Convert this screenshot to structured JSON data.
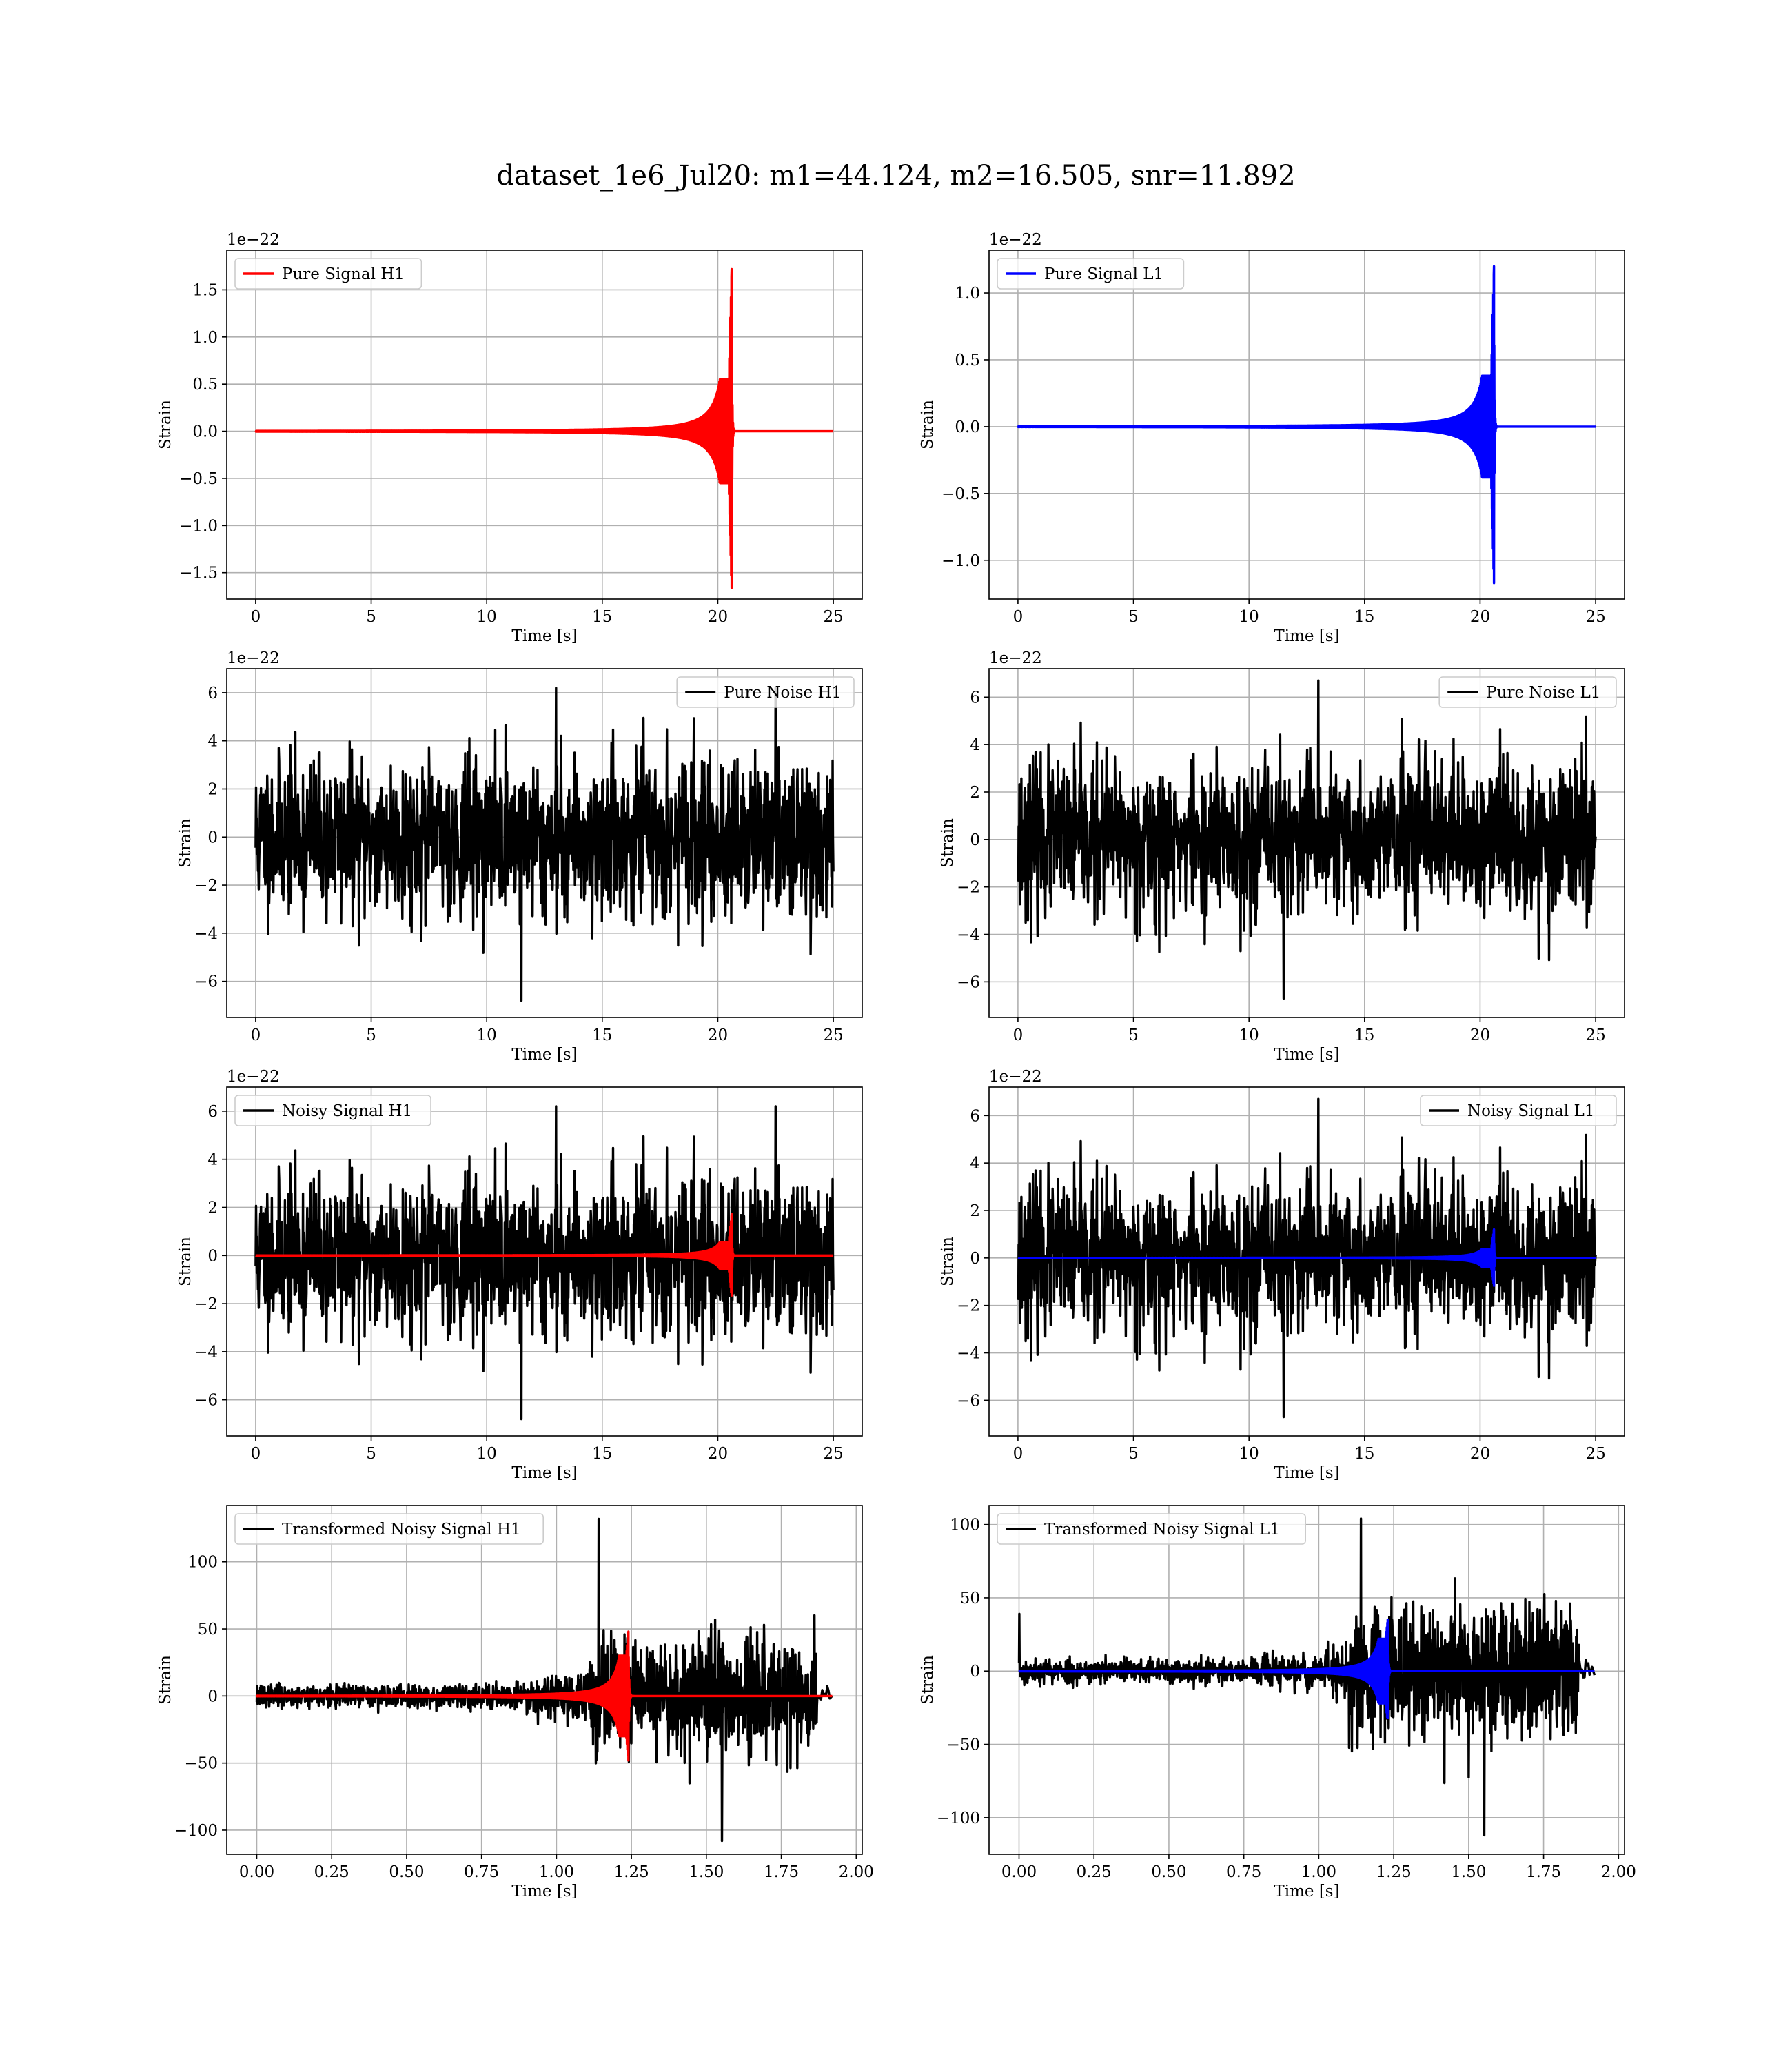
{
  "figure": {
    "title": "dataset_1e6_Jul20: m1=44.124, m2=16.505, snr=11.892"
  },
  "colors": {
    "h1_signal": "#ff0000",
    "l1_signal": "#0000ff",
    "noise": "#000000",
    "grid": "#b0b0b0"
  },
  "chart_data": [
    {
      "id": "pure-signal-h1",
      "type": "line",
      "row": 0,
      "col": 0,
      "xlabel": "Time [s]",
      "ylabel": "Strain",
      "offset_text": "1e−22",
      "xlim": [
        -1.25,
        26.25
      ],
      "ylim": [
        -1.78,
        1.92
      ],
      "xticks": [
        0,
        5,
        10,
        15,
        20,
        25
      ],
      "xtick_labels": [
        "0",
        "5",
        "10",
        "15",
        "20",
        "25"
      ],
      "yticks": [
        -1.5,
        -1.0,
        -0.5,
        0.0,
        0.5,
        1.0,
        1.5
      ],
      "ytick_labels": [
        "−1.5",
        "−1.0",
        "−0.5",
        "0.0",
        "0.5",
        "1.0",
        "1.5"
      ],
      "legend": {
        "position": "upper left",
        "label": "Pure Signal H1"
      },
      "series": [
        {
          "kind": "chirp",
          "color": "#ff0000",
          "legend": true,
          "x_range": [
            0,
            25
          ],
          "t_merger": 20.6,
          "peak_pos": 1.72,
          "peak_neg": -1.66,
          "envelope_at_merger": 0.55,
          "ringdown": 0.08
        }
      ]
    },
    {
      "id": "pure-signal-l1",
      "type": "line",
      "row": 0,
      "col": 1,
      "xlabel": "Time [s]",
      "ylabel": "Strain",
      "offset_text": "1e−22",
      "xlim": [
        -1.25,
        26.25
      ],
      "ylim": [
        -1.29,
        1.32
      ],
      "xticks": [
        0,
        5,
        10,
        15,
        20,
        25
      ],
      "xtick_labels": [
        "0",
        "5",
        "10",
        "15",
        "20",
        "25"
      ],
      "yticks": [
        -1.0,
        -0.5,
        0.0,
        0.5,
        1.0
      ],
      "ytick_labels": [
        "−1.0",
        "−0.5",
        "0.0",
        "0.5",
        "1.0"
      ],
      "legend": {
        "position": "upper left",
        "label": "Pure Signal L1"
      },
      "series": [
        {
          "kind": "chirp",
          "color": "#0000ff",
          "legend": true,
          "x_range": [
            0,
            25
          ],
          "t_merger": 20.6,
          "peak_pos": 1.2,
          "peak_neg": -1.17,
          "envelope_at_merger": 0.38,
          "ringdown": 0.08
        }
      ]
    },
    {
      "id": "pure-noise-h1",
      "type": "line",
      "row": 1,
      "col": 0,
      "xlabel": "Time [s]",
      "ylabel": "Strain",
      "offset_text": "1e−22",
      "xlim": [
        -1.25,
        26.25
      ],
      "ylim": [
        -7.5,
        7.0
      ],
      "xticks": [
        0,
        5,
        10,
        15,
        20,
        25
      ],
      "xtick_labels": [
        "0",
        "5",
        "10",
        "15",
        "20",
        "25"
      ],
      "yticks": [
        -6,
        -4,
        -2,
        0,
        2,
        4,
        6
      ],
      "ytick_labels": [
        "−6",
        "−4",
        "−2",
        "0",
        "2",
        "4",
        "6"
      ],
      "legend": {
        "position": "upper right",
        "label": "Pure Noise H1"
      },
      "series": [
        {
          "kind": "noise",
          "color": "#000000",
          "legend": true,
          "x_range": [
            0,
            25
          ],
          "sigma": 1.6,
          "max": 6.2,
          "min": -6.8,
          "seed": 11
        }
      ]
    },
    {
      "id": "pure-noise-l1",
      "type": "line",
      "row": 1,
      "col": 1,
      "xlabel": "Time [s]",
      "ylabel": "Strain",
      "offset_text": "1e−22",
      "xlim": [
        -1.25,
        26.25
      ],
      "ylim": [
        -7.5,
        7.2
      ],
      "xticks": [
        0,
        5,
        10,
        15,
        20,
        25
      ],
      "xtick_labels": [
        "0",
        "5",
        "10",
        "15",
        "20",
        "25"
      ],
      "yticks": [
        -6,
        -4,
        -2,
        0,
        2,
        4,
        6
      ],
      "ytick_labels": [
        "−6",
        "−4",
        "−2",
        "0",
        "2",
        "4",
        "6"
      ],
      "legend": {
        "position": "upper right",
        "label": "Pure Noise L1"
      },
      "series": [
        {
          "kind": "noise",
          "color": "#000000",
          "legend": true,
          "x_range": [
            0,
            25
          ],
          "sigma": 1.6,
          "max": 6.7,
          "min": -6.7,
          "seed": 23
        }
      ]
    },
    {
      "id": "noisy-signal-h1",
      "type": "line",
      "row": 2,
      "col": 0,
      "xlabel": "Time [s]",
      "ylabel": "Strain",
      "offset_text": "1e−22",
      "xlim": [
        -1.25,
        26.25
      ],
      "ylim": [
        -7.5,
        7.0
      ],
      "xticks": [
        0,
        5,
        10,
        15,
        20,
        25
      ],
      "xtick_labels": [
        "0",
        "5",
        "10",
        "15",
        "20",
        "25"
      ],
      "yticks": [
        -6,
        -4,
        -2,
        0,
        2,
        4,
        6
      ],
      "ytick_labels": [
        "−6",
        "−4",
        "−2",
        "0",
        "2",
        "4",
        "6"
      ],
      "legend": {
        "position": "upper left",
        "label": "Noisy Signal H1"
      },
      "series": [
        {
          "kind": "noise",
          "color": "#000000",
          "legend": true,
          "x_range": [
            0,
            25
          ],
          "sigma": 1.6,
          "max": 6.2,
          "min": -6.8,
          "seed": 11
        },
        {
          "kind": "chirp",
          "color": "#ff0000",
          "legend": false,
          "x_range": [
            0,
            25
          ],
          "t_merger": 20.6,
          "peak_pos": 1.72,
          "peak_neg": -1.66,
          "envelope_at_merger": 0.55,
          "ringdown": 0.08
        }
      ]
    },
    {
      "id": "noisy-signal-l1",
      "type": "line",
      "row": 2,
      "col": 1,
      "xlabel": "Time [s]",
      "ylabel": "Strain",
      "offset_text": "1e−22",
      "xlim": [
        -1.25,
        26.25
      ],
      "ylim": [
        -7.5,
        7.2
      ],
      "xticks": [
        0,
        5,
        10,
        15,
        20,
        25
      ],
      "xtick_labels": [
        "0",
        "5",
        "10",
        "15",
        "20",
        "25"
      ],
      "yticks": [
        -6,
        -4,
        -2,
        0,
        2,
        4,
        6
      ],
      "ytick_labels": [
        "−6",
        "−4",
        "−2",
        "0",
        "2",
        "4",
        "6"
      ],
      "legend": {
        "position": "upper right",
        "label": "Noisy Signal L1"
      },
      "series": [
        {
          "kind": "noise",
          "color": "#000000",
          "legend": true,
          "x_range": [
            0,
            25
          ],
          "sigma": 1.6,
          "max": 6.7,
          "min": -6.7,
          "seed": 23
        },
        {
          "kind": "chirp",
          "color": "#0000ff",
          "legend": false,
          "x_range": [
            0,
            25
          ],
          "t_merger": 20.6,
          "peak_pos": 1.2,
          "peak_neg": -1.17,
          "envelope_at_merger": 0.38,
          "ringdown": 0.08
        }
      ]
    },
    {
      "id": "transformed-noisy-signal-h1",
      "type": "line",
      "row": 3,
      "col": 0,
      "xlabel": "Time [s]",
      "ylabel": "Strain",
      "offset_text": "",
      "xlim": [
        -0.1,
        2.02
      ],
      "ylim": [
        -118,
        142
      ],
      "xticks": [
        0.0,
        0.25,
        0.5,
        0.75,
        1.0,
        1.25,
        1.5,
        1.75,
        2.0
      ],
      "xtick_labels": [
        "0.00",
        "0.25",
        "0.50",
        "0.75",
        "1.00",
        "1.25",
        "1.50",
        "1.75",
        "2.00"
      ],
      "yticks": [
        -100,
        -50,
        0,
        50,
        100
      ],
      "ytick_labels": [
        "−100",
        "−50",
        "0",
        "50",
        "100"
      ],
      "legend": {
        "position": "upper left",
        "label": "Transformed Noisy Signal H1"
      },
      "series": [
        {
          "kind": "whitened",
          "color": "#000000",
          "legend": true,
          "x_range": [
            0,
            1.87
          ],
          "x_tail": 1.92,
          "t_jump": 1.11,
          "sigma_early": 4,
          "sigma_mid": 10,
          "sigma_late": 20,
          "max": 132,
          "min": -108,
          "seed": 37
        },
        {
          "kind": "chirp",
          "color": "#ff0000",
          "legend": false,
          "x_range": [
            0,
            1.92
          ],
          "t_merger": 1.24,
          "peak_pos": 48,
          "peak_neg": -48,
          "envelope_at_merger": 30,
          "ringdown": 0.008
        }
      ]
    },
    {
      "id": "transformed-noisy-signal-l1",
      "type": "line",
      "row": 3,
      "col": 1,
      "xlabel": "Time [s]",
      "ylabel": "Strain",
      "offset_text": "",
      "xlim": [
        -0.1,
        2.02
      ],
      "ylim": [
        -125,
        113
      ],
      "xticks": [
        0.0,
        0.25,
        0.5,
        0.75,
        1.0,
        1.25,
        1.5,
        1.75,
        2.0
      ],
      "xtick_labels": [
        "0.00",
        "0.25",
        "0.50",
        "0.75",
        "1.00",
        "1.25",
        "1.50",
        "1.75",
        "2.00"
      ],
      "yticks": [
        -100,
        -50,
        0,
        50,
        100
      ],
      "ytick_labels": [
        "−100",
        "−50",
        "0",
        "50",
        "100"
      ],
      "legend": {
        "position": "upper left",
        "label": "Transformed Noisy Signal L1"
      },
      "series": [
        {
          "kind": "whitened",
          "color": "#000000",
          "legend": true,
          "x_range": [
            0,
            1.87
          ],
          "x_tail": 1.92,
          "t_jump": 1.1,
          "sigma_early": 4,
          "sigma_mid": 8,
          "sigma_late": 22,
          "max": 104,
          "min": -112,
          "seed": 53,
          "start_spike": 39
        },
        {
          "kind": "chirp",
          "color": "#0000ff",
          "legend": false,
          "x_range": [
            0,
            1.92
          ],
          "t_merger": 1.23,
          "peak_pos": 35,
          "peak_neg": -32,
          "envelope_at_merger": 22,
          "ringdown": 0.008
        }
      ]
    }
  ]
}
